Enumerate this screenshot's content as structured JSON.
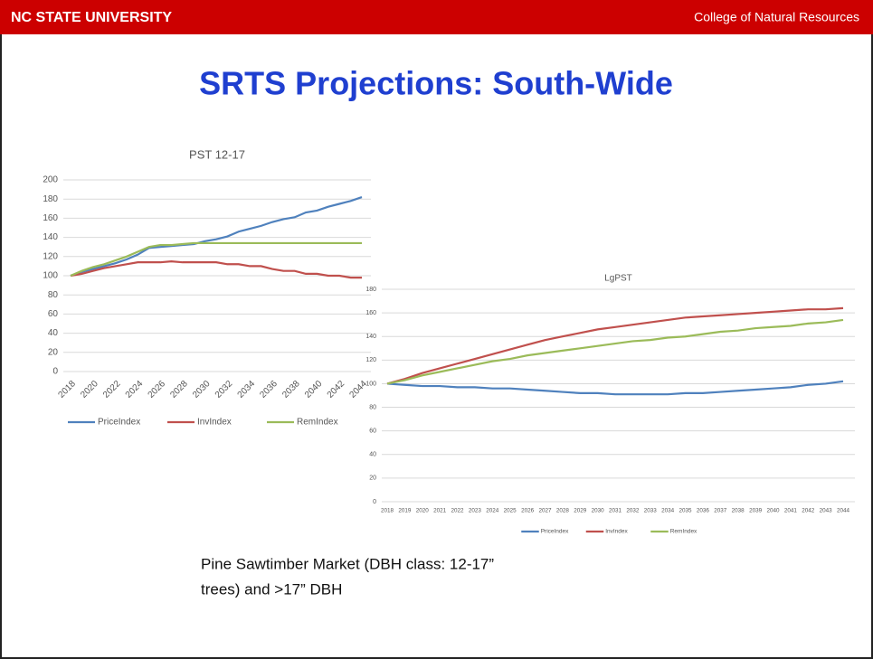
{
  "header": {
    "left": "NC STATE UNIVERSITY",
    "right": "College of Natural Resources"
  },
  "title": "SRTS Projections: South-Wide",
  "chart_data": [
    {
      "type": "line",
      "title": "PST 12-17",
      "categories": [
        "2018",
        null,
        "2020",
        null,
        "2022",
        null,
        "2024",
        null,
        "2026",
        null,
        "2028",
        null,
        "2030",
        null,
        "2032",
        null,
        "2034",
        null,
        "2036",
        null,
        "2038",
        null,
        "2040",
        null,
        "2042",
        null,
        "2044"
      ],
      "series": [
        {
          "name": "PriceIndex",
          "color": "#4f81bd",
          "values": [
            100,
            104,
            107,
            110,
            113,
            117,
            122,
            129,
            130,
            131,
            132,
            133,
            136,
            138,
            141,
            146,
            149,
            152,
            156,
            159,
            161,
            166,
            168,
            172,
            175,
            178,
            182
          ]
        },
        {
          "name": "InvIndex",
          "color": "#c0504d",
          "values": [
            100,
            102,
            105,
            108,
            110,
            112,
            114,
            114,
            114,
            115,
            114,
            114,
            114,
            114,
            112,
            112,
            110,
            110,
            107,
            105,
            105,
            102,
            102,
            100,
            100,
            98,
            98
          ]
        },
        {
          "name": "RemIndex",
          "color": "#9bbb59",
          "values": [
            100,
            105,
            109,
            112,
            116,
            120,
            125,
            130,
            132,
            132,
            133,
            134,
            134,
            134,
            134,
            134,
            134,
            134,
            134,
            134,
            134,
            134,
            134,
            134,
            134,
            134,
            134
          ]
        }
      ],
      "ylim": [
        0,
        200
      ],
      "yticks": [
        0,
        20,
        40,
        60,
        80,
        100,
        120,
        140,
        160,
        180,
        200
      ],
      "grid": true,
      "legend": "bottom"
    },
    {
      "type": "line",
      "title": "LgPST",
      "categories": [
        "2018",
        "2019",
        "2020",
        "2021",
        "2022",
        "2023",
        "2024",
        "2025",
        "2026",
        "2027",
        "2028",
        "2029",
        "2030",
        "2031",
        "2032",
        "2033",
        "2034",
        "2035",
        "2036",
        "2037",
        "2038",
        "2039",
        "2040",
        "2041",
        "2042",
        "2043",
        "2044"
      ],
      "series": [
        {
          "name": "PriceIndex",
          "color": "#4f81bd",
          "values": [
            100,
            99,
            98,
            98,
            97,
            97,
            96,
            96,
            95,
            94,
            93,
            92,
            92,
            91,
            91,
            91,
            91,
            92,
            92,
            93,
            94,
            95,
            96,
            97,
            99,
            100,
            102
          ]
        },
        {
          "name": "InvIndex",
          "color": "#c0504d",
          "values": [
            100,
            104,
            109,
            113,
            117,
            121,
            125,
            129,
            133,
            137,
            140,
            143,
            146,
            148,
            150,
            152,
            154,
            156,
            157,
            158,
            159,
            160,
            161,
            162,
            163,
            163,
            164
          ]
        },
        {
          "name": "RemIndex",
          "color": "#9bbb59",
          "values": [
            100,
            103,
            107,
            110,
            113,
            116,
            119,
            121,
            124,
            126,
            128,
            130,
            132,
            134,
            136,
            137,
            139,
            140,
            142,
            144,
            145,
            147,
            148,
            149,
            151,
            152,
            154
          ]
        }
      ],
      "ylim": [
        0,
        180
      ],
      "yticks": [
        0,
        20,
        40,
        60,
        80,
        100,
        120,
        140,
        160,
        180
      ],
      "grid": true,
      "legend": "bottom"
    }
  ],
  "caption": [
    "Pine Sawtimber Market (DBH class: 12-17”",
    "trees) and >17” DBH"
  ]
}
